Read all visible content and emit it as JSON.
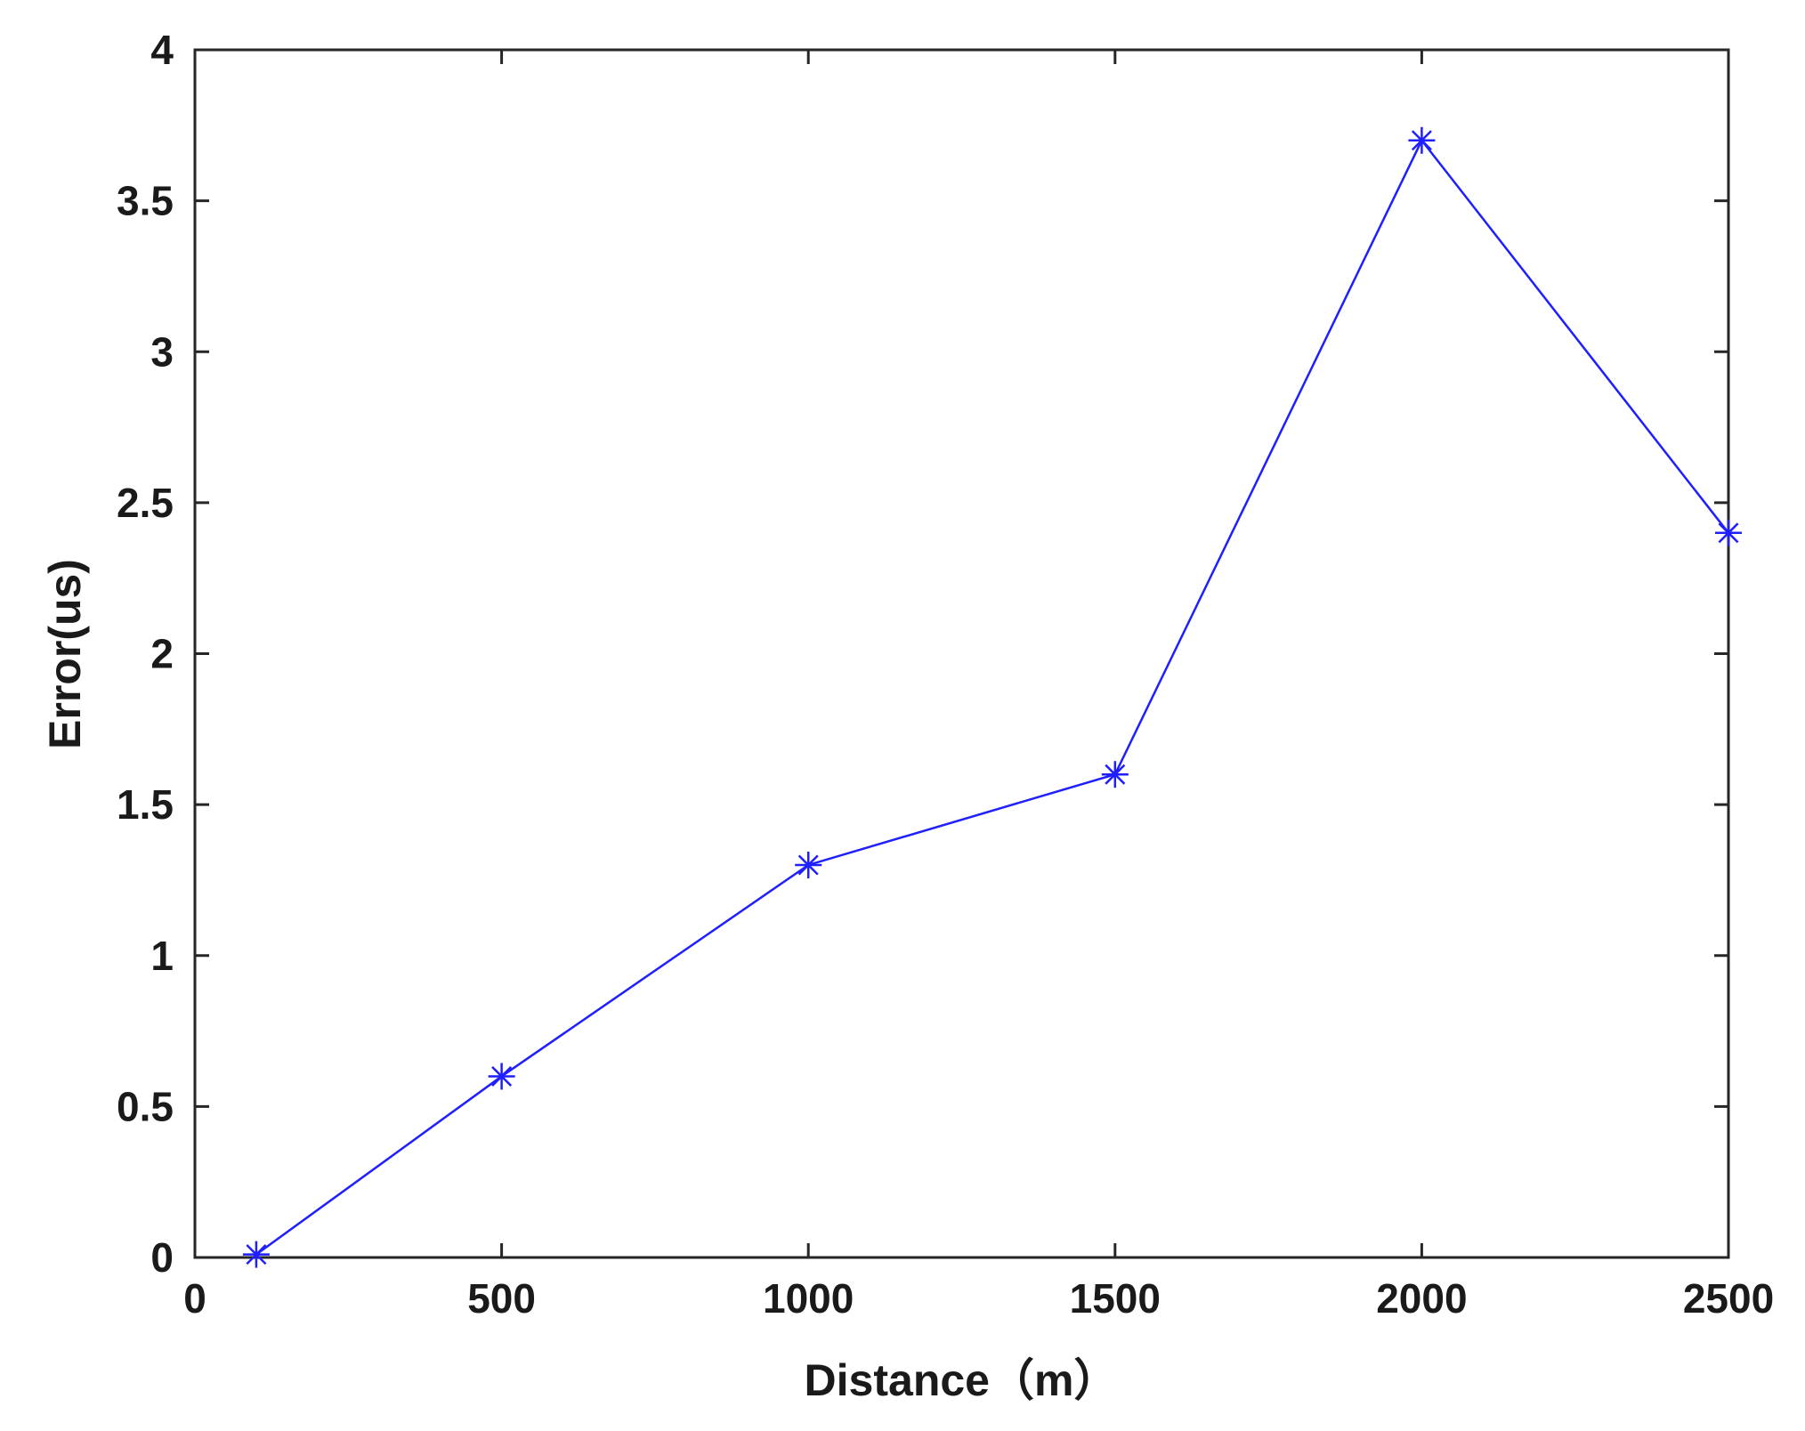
{
  "chart_data": {
    "type": "line",
    "title": "",
    "xlabel": "Distance（m）",
    "ylabel": "Error(us)",
    "xlim": [
      0,
      2500
    ],
    "ylim": [
      0,
      4
    ],
    "xticks": [
      0,
      500,
      1000,
      1500,
      2000,
      2500
    ],
    "yticks": [
      0,
      0.5,
      1,
      1.5,
      2,
      2.5,
      3,
      3.5,
      4
    ],
    "xtick_labels": [
      "0",
      "500",
      "1000",
      "1500",
      "2000",
      "2500"
    ],
    "ytick_labels": [
      "0",
      "0.5",
      "1",
      "1.5",
      "2",
      "2.5",
      "3",
      "3.5",
      "4"
    ],
    "grid": false,
    "legend": "none",
    "series": [
      {
        "color": "#1f1fff",
        "marker": "asterisk",
        "x": [
          100,
          500,
          1000,
          1500,
          2000,
          2500
        ],
        "y": [
          0.01,
          0.6,
          1.3,
          1.6,
          3.7,
          2.4
        ]
      }
    ]
  }
}
